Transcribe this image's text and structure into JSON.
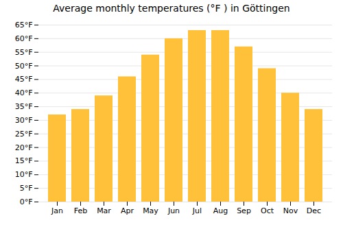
{
  "chart_data": {
    "type": "bar",
    "title": "Average monthly temperatures (°F ) in Göttingen",
    "categories": [
      "Jan",
      "Feb",
      "Mar",
      "Apr",
      "May",
      "Jun",
      "Jul",
      "Aug",
      "Sep",
      "Oct",
      "Nov",
      "Dec"
    ],
    "values": [
      32,
      34,
      39,
      46,
      54,
      60,
      63,
      63,
      57,
      49,
      40,
      34
    ],
    "color": "#FFC13A",
    "ylim": [
      0,
      65
    ],
    "yticks": [
      {
        "value": 0,
        "label": "0°F"
      },
      {
        "value": 5,
        "label": "5°F"
      },
      {
        "value": 10,
        "label": "10°F"
      },
      {
        "value": 15,
        "label": "15°F"
      },
      {
        "value": 20,
        "label": "20°F"
      },
      {
        "value": 25,
        "label": "25°F"
      },
      {
        "value": 30,
        "label": "30°F"
      },
      {
        "value": 35,
        "label": "35°F"
      },
      {
        "value": 40,
        "label": "40°F"
      },
      {
        "value": 45,
        "label": "45°F"
      },
      {
        "value": 50,
        "label": "50°F"
      },
      {
        "value": 55,
        "label": "55°F"
      },
      {
        "value": 60,
        "label": "60°F"
      },
      {
        "value": 65,
        "label": "65°F"
      }
    ],
    "grid": true
  }
}
